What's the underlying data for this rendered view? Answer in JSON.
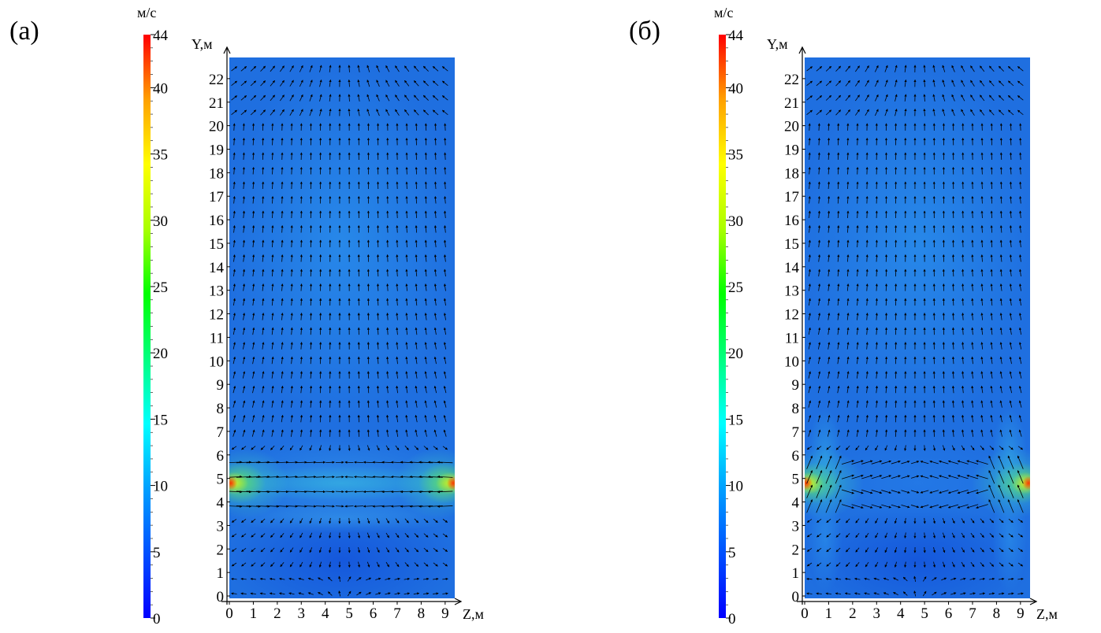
{
  "figure": {
    "panels": [
      {
        "label": "(а)",
        "colorbar_unit": "м/с",
        "y_axis_label": "Y,м",
        "x_axis_label": "Z,м"
      },
      {
        "label": "(б)",
        "colorbar_unit": "м/с",
        "y_axis_label": "Y,м",
        "x_axis_label": "Z,м"
      }
    ]
  },
  "colors": {
    "colormap": [
      "#0000ff",
      "#0050ff",
      "#00a0ff",
      "#00ffff",
      "#00ff80",
      "#00ff00",
      "#aaff00",
      "#ffff00",
      "#ffa000",
      "#ff0000"
    ],
    "background_field": "#1f6fe0",
    "jet_core": "#ff3000"
  },
  "chart_data": [
    {
      "type": "heatmap",
      "title": "",
      "xlabel": "Z,м",
      "ylabel": "Y,м",
      "xlim": [
        0,
        9.4
      ],
      "ylim": [
        -0.1,
        22.9
      ],
      "x_ticks": [
        0,
        1,
        2,
        3,
        4,
        5,
        6,
        7,
        8,
        9
      ],
      "y_ticks": [
        0,
        1,
        2,
        3,
        4,
        5,
        6,
        7,
        8,
        9,
        10,
        11,
        12,
        13,
        14,
        15,
        16,
        17,
        18,
        19,
        20,
        21,
        22
      ],
      "colorbar": {
        "unit": "м/с",
        "min": 0,
        "max": 44,
        "ticks": [
          0,
          5,
          10,
          15,
          20,
          25,
          30,
          35,
          40,
          44
        ]
      },
      "overlay": "velocity vector field",
      "inlets": [
        {
          "z": 0,
          "y": 4.8,
          "peak_speed": 44
        },
        {
          "z": 9.4,
          "y": 4.8,
          "peak_speed": 44
        }
      ],
      "jet_penetration": "jets meet near the center at Y≈4.8 м"
    },
    {
      "type": "heatmap",
      "title": "",
      "xlabel": "Z,м",
      "ylabel": "Y,м",
      "xlim": [
        0,
        9.4
      ],
      "ylim": [
        -0.1,
        22.9
      ],
      "x_ticks": [
        0,
        1,
        2,
        3,
        4,
        5,
        6,
        7,
        8,
        9
      ],
      "y_ticks": [
        0,
        1,
        2,
        3,
        4,
        5,
        6,
        7,
        8,
        9,
        10,
        11,
        12,
        13,
        14,
        15,
        16,
        17,
        18,
        19,
        20,
        21,
        22
      ],
      "colorbar": {
        "unit": "м/с",
        "min": 0,
        "max": 44,
        "ticks": [
          0,
          5,
          10,
          15,
          20,
          25,
          30,
          35,
          40,
          44
        ]
      },
      "overlay": "velocity vector field",
      "inlets": [
        {
          "z": 0,
          "y": 4.8,
          "peak_speed": 44
        },
        {
          "z": 9.4,
          "y": 4.8,
          "peak_speed": 44
        }
      ],
      "jet_penetration": "jets deflect upward near the walls at Y≈6 м"
    }
  ]
}
